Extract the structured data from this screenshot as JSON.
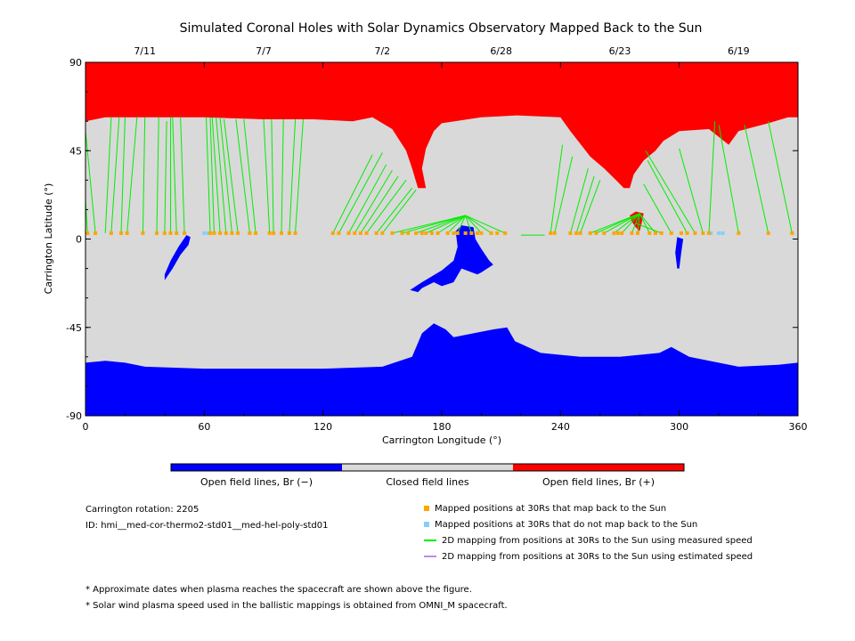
{
  "chart_data": {
    "type": "map",
    "title": "Simulated Coronal Holes with Solar Dynamics Observatory Mapped Back to the Sun",
    "xlabel": "Carrington Longitude (°)",
    "ylabel": "Carrington Latitude (°)",
    "xlim": [
      0,
      360
    ],
    "ylim": [
      -90,
      90
    ],
    "xticks": [
      "0",
      "60",
      "120",
      "180",
      "240",
      "300",
      "360"
    ],
    "xtick_values": [
      0,
      60,
      120,
      180,
      240,
      300,
      360
    ],
    "yticks": [
      "90",
      "45",
      "0",
      "-45",
      "-90"
    ],
    "ytick_values": [
      90,
      45,
      0,
      -45,
      -90
    ],
    "top_dates": [
      {
        "label": "7/11",
        "lon": 30
      },
      {
        "label": "7/7",
        "lon": 90
      },
      {
        "label": "7/2",
        "lon": 150
      },
      {
        "label": "6/28",
        "lon": 210
      },
      {
        "label": "6/23",
        "lon": 270
      },
      {
        "label": "6/19",
        "lon": 330
      }
    ],
    "colorbar": [
      {
        "label": "Open field lines, Br (−)",
        "color": "#0000ff"
      },
      {
        "label": "Closed field lines",
        "color": "#d9d9d9"
      },
      {
        "label": "Open field lines, Br (+)",
        "color": "#ff0000"
      }
    ],
    "colors": {
      "open_negative": "#0000ff",
      "closed": "#d9d9d9",
      "open_positive": "#ff0000",
      "mapped": "#ffa500",
      "unmapped": "#87cefa",
      "measured": "#00ee00",
      "estimated": "#bb88ee"
    },
    "mapped_positions_lat": 3,
    "mapped_positions_lon": [
      1,
      5,
      13,
      18,
      21,
      29,
      36,
      40,
      43,
      46,
      50,
      63,
      65,
      68,
      71,
      74,
      77,
      83,
      86,
      93,
      95,
      99,
      103,
      106,
      125,
      128,
      133,
      136,
      139,
      142,
      147,
      150,
      155,
      160,
      163,
      167,
      170,
      172,
      175,
      178,
      183,
      186,
      188,
      192,
      195,
      198,
      200,
      205,
      208,
      212,
      235,
      237,
      245,
      248,
      250,
      255,
      258,
      262,
      267,
      269,
      271,
      276,
      279,
      285,
      288,
      291,
      296,
      301,
      304,
      308,
      312,
      315,
      330,
      345,
      357
    ],
    "unmapped_positions_lon": [
      60,
      62,
      316,
      320,
      322
    ],
    "open_negative_regions": [
      {
        "name": "south-polar-hole",
        "outline": [
          [
            0,
            -63
          ],
          [
            10,
            -62
          ],
          [
            20,
            -63
          ],
          [
            30,
            -65
          ],
          [
            60,
            -66
          ],
          [
            90,
            -66
          ],
          [
            120,
            -66
          ],
          [
            150,
            -65
          ],
          [
            165,
            -60
          ],
          [
            170,
            -48
          ],
          [
            176,
            -43
          ],
          [
            182,
            -46
          ],
          [
            186,
            -50
          ],
          [
            196,
            -48
          ],
          [
            206,
            -46
          ],
          [
            213,
            -45
          ],
          [
            217,
            -52
          ],
          [
            230,
            -58
          ],
          [
            250,
            -60
          ],
          [
            270,
            -60
          ],
          [
            290,
            -58
          ],
          [
            296,
            -55
          ],
          [
            305,
            -60
          ],
          [
            330,
            -65
          ],
          [
            350,
            -64
          ],
          [
            360,
            -63
          ],
          [
            360,
            -90
          ],
          [
            0,
            -90
          ]
        ]
      },
      {
        "name": "equatorial-hole-center",
        "outline": [
          [
            164,
            -26
          ],
          [
            170,
            -22
          ],
          [
            180,
            -16
          ],
          [
            186,
            -11
          ],
          [
            188,
            -4
          ],
          [
            187,
            4
          ],
          [
            190,
            7
          ],
          [
            196,
            6
          ],
          [
            197,
            0
          ],
          [
            200,
            -5
          ],
          [
            204,
            -11
          ],
          [
            206,
            -13
          ],
          [
            200,
            -17
          ],
          [
            198,
            -18
          ],
          [
            190,
            -15
          ],
          [
            186,
            -22
          ],
          [
            180,
            -24
          ],
          [
            176,
            -22
          ],
          [
            170,
            -25
          ],
          [
            168,
            -27
          ]
        ]
      },
      {
        "name": "equatorial-hole-left",
        "outline": [
          [
            40,
            -21
          ],
          [
            44,
            -15
          ],
          [
            48,
            -8
          ],
          [
            52,
            -3
          ],
          [
            53,
            1
          ],
          [
            51,
            2
          ],
          [
            47,
            -4
          ],
          [
            43,
            -11
          ],
          [
            40,
            -18
          ]
        ]
      },
      {
        "name": "equatorial-hole-right",
        "outline": [
          [
            299,
            1
          ],
          [
            302,
            0
          ],
          [
            301,
            -7
          ],
          [
            300,
            -15
          ],
          [
            299,
            -15
          ],
          [
            298,
            -7
          ]
        ]
      }
    ],
    "open_positive_regions": [
      {
        "name": "north-polar-hole",
        "outline": [
          [
            0,
            60
          ],
          [
            10,
            62
          ],
          [
            30,
            62
          ],
          [
            60,
            62
          ],
          [
            90,
            61
          ],
          [
            115,
            61
          ],
          [
            135,
            60
          ],
          [
            145,
            62
          ],
          [
            155,
            56
          ],
          [
            162,
            45
          ],
          [
            165,
            36
          ],
          [
            168,
            26
          ],
          [
            172,
            26
          ],
          [
            170,
            36
          ],
          [
            172,
            46
          ],
          [
            176,
            55
          ],
          [
            180,
            59
          ],
          [
            200,
            62
          ],
          [
            218,
            63
          ],
          [
            240,
            62
          ],
          [
            245,
            55
          ],
          [
            255,
            42
          ],
          [
            262,
            36
          ],
          [
            268,
            30
          ],
          [
            272,
            26
          ],
          [
            275,
            26
          ],
          [
            277,
            33
          ],
          [
            282,
            40
          ],
          [
            288,
            45
          ],
          [
            292,
            50
          ],
          [
            300,
            55
          ],
          [
            315,
            56
          ],
          [
            325,
            48
          ],
          [
            330,
            55
          ],
          [
            345,
            59
          ],
          [
            355,
            62
          ],
          [
            360,
            62
          ],
          [
            360,
            90
          ],
          [
            0,
            90
          ]
        ]
      },
      {
        "name": "coronal-hole-6-23",
        "outline": [
          [
            275,
            12
          ],
          [
            278,
            14
          ],
          [
            282,
            13
          ],
          [
            281,
            8
          ],
          [
            280,
            4
          ],
          [
            278,
            6
          ],
          [
            276,
            9
          ]
        ]
      }
    ],
    "measured_lines": [
      [
        10,
        3,
        13,
        62
      ],
      [
        13,
        3,
        17,
        62
      ],
      [
        18,
        3,
        20,
        62
      ],
      [
        21,
        3,
        26,
        62
      ],
      [
        29,
        3,
        30,
        62
      ],
      [
        36,
        3,
        37,
        62
      ],
      [
        40,
        3,
        41,
        60
      ],
      [
        43,
        3,
        43,
        62
      ],
      [
        46,
        3,
        44,
        62
      ],
      [
        50,
        3,
        48,
        62
      ],
      [
        63,
        3,
        61,
        62
      ],
      [
        65,
        3,
        63,
        62
      ],
      [
        68,
        3,
        64,
        62
      ],
      [
        71,
        3,
        66,
        62
      ],
      [
        74,
        3,
        68,
        62
      ],
      [
        77,
        3,
        70,
        61
      ],
      [
        83,
        3,
        76,
        61
      ],
      [
        86,
        3,
        80,
        61
      ],
      [
        93,
        3,
        90,
        61
      ],
      [
        95,
        3,
        94,
        61
      ],
      [
        99,
        3,
        100,
        61
      ],
      [
        103,
        3,
        106,
        61
      ],
      [
        106,
        3,
        110,
        61
      ],
      [
        125,
        3,
        145,
        43
      ],
      [
        128,
        3,
        150,
        44
      ],
      [
        133,
        3,
        152,
        38
      ],
      [
        136,
        3,
        155,
        35
      ],
      [
        139,
        3,
        158,
        32
      ],
      [
        142,
        3,
        162,
        30
      ],
      [
        147,
        3,
        165,
        26
      ],
      [
        150,
        3,
        167,
        25
      ],
      [
        155,
        3,
        192,
        12
      ],
      [
        160,
        3,
        192,
        12
      ],
      [
        167,
        3,
        192,
        12
      ],
      [
        172,
        3,
        192,
        12
      ],
      [
        178,
        3,
        192,
        12
      ],
      [
        183,
        3,
        192,
        12
      ],
      [
        188,
        3,
        192,
        12
      ],
      [
        195,
        3,
        192,
        12
      ],
      [
        200,
        3,
        192,
        12
      ],
      [
        205,
        3,
        192,
        12
      ],
      [
        212,
        3,
        192,
        12
      ],
      [
        220,
        2,
        232,
        2
      ],
      [
        235,
        3,
        241,
        48
      ],
      [
        237,
        3,
        246,
        42
      ],
      [
        245,
        3,
        254,
        36
      ],
      [
        248,
        3,
        257,
        32
      ],
      [
        250,
        3,
        260,
        30
      ],
      [
        255,
        3,
        280,
        13
      ],
      [
        258,
        3,
        280,
        13
      ],
      [
        262,
        3,
        280,
        13
      ],
      [
        267,
        3,
        280,
        13
      ],
      [
        271,
        3,
        280,
        13
      ],
      [
        276,
        3,
        280,
        13
      ],
      [
        279,
        3,
        280,
        13
      ],
      [
        285,
        3,
        280,
        13
      ],
      [
        288,
        3,
        280,
        13
      ],
      [
        291,
        3,
        278,
        8
      ],
      [
        296,
        3,
        282,
        28
      ],
      [
        304,
        3,
        284,
        40
      ],
      [
        308,
        3,
        283,
        45
      ],
      [
        312,
        3,
        300,
        46
      ],
      [
        315,
        3,
        318,
        60
      ],
      [
        330,
        3,
        320,
        58
      ],
      [
        345,
        3,
        333,
        58
      ],
      [
        357,
        3,
        345,
        60
      ],
      [
        1,
        3,
        0,
        20
      ],
      [
        5,
        3,
        0,
        55
      ]
    ],
    "legend": [
      {
        "marker": "square",
        "color": "#ffa500",
        "label": "Mapped positions at 30Rs that map back to the Sun"
      },
      {
        "marker": "square",
        "color": "#87cefa",
        "label": "Mapped positions at 30Rs that do not map back to the Sun"
      },
      {
        "marker": "line",
        "color": "#00ee00",
        "label": "2D mapping from positions at 30Rs to the Sun using measured speed"
      },
      {
        "marker": "line",
        "color": "#bb88ee",
        "label": "2D mapping from positions at 30Rs to the Sun using estimated speed"
      }
    ]
  },
  "info": {
    "rotation": "Carrington rotation: 2205",
    "id": "ID: hmi__med-cor-thermo2-std01__med-hel-poly-std01"
  },
  "notes": [
    "* Approximate dates when plasma reaches the spacecraft are shown above the figure.",
    "* Solar wind plasma speed used in the ballistic mappings is obtained from OMNI_M spacecraft."
  ]
}
